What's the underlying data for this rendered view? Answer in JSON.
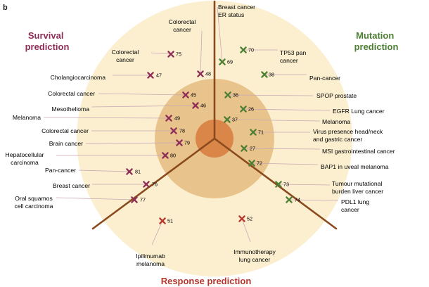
{
  "panel_label": "b",
  "colors": {
    "outer_circle": "#fbefcf",
    "middle_circle": "#e9c38c",
    "inner_circle": "#d98648",
    "divider": "#8a4a1e",
    "survival": "#8e2e57",
    "mutation": "#4d7f32",
    "response": "#b5362c",
    "leader": "#c7a9b4"
  },
  "titles": {
    "survival": [
      "Survival",
      "prediction"
    ],
    "mutation": [
      "Mutation",
      "prediction"
    ],
    "response": "Response prediction"
  },
  "items": [
    {
      "category": "survival",
      "ref": "75",
      "label": [
        "Colorectal",
        "cancer"
      ]
    },
    {
      "category": "survival",
      "ref": "48",
      "label": [
        "Colorectal",
        "cancer"
      ]
    },
    {
      "category": "survival",
      "ref": "47",
      "label": [
        "Cholangiocarcinoma"
      ]
    },
    {
      "category": "survival",
      "ref": "45",
      "label": [
        "Colorectal cancer"
      ]
    },
    {
      "category": "survival",
      "ref": "46",
      "label": [
        "Mesothelioma"
      ]
    },
    {
      "category": "survival",
      "ref": "49",
      "label": [
        "Melanoma"
      ]
    },
    {
      "category": "survival",
      "ref": "78",
      "label": [
        "Colorectal cancer"
      ]
    },
    {
      "category": "survival",
      "ref": "79",
      "label": [
        "Brain cancer"
      ]
    },
    {
      "category": "survival",
      "ref": "80",
      "label": [
        "Hepatocellular",
        "carcinoma"
      ]
    },
    {
      "category": "survival",
      "ref": "81",
      "label": [
        "Pan-cancer"
      ]
    },
    {
      "category": "survival",
      "ref": "76",
      "label": [
        "Breast cancer"
      ]
    },
    {
      "category": "survival",
      "ref": "77",
      "label": [
        "Oral squamos",
        "cell carcinoma"
      ]
    },
    {
      "category": "mutation",
      "ref": "69",
      "label": [
        "Breast cancer",
        "ER status"
      ]
    },
    {
      "category": "mutation",
      "ref": "70",
      "label": [
        "TP53 pan",
        "cancer"
      ]
    },
    {
      "category": "mutation",
      "ref": "38",
      "label": [
        "Pan-cancer"
      ]
    },
    {
      "category": "mutation",
      "ref": "36",
      "label": [
        "SPOP prostate"
      ]
    },
    {
      "category": "mutation",
      "ref": "26",
      "label": [
        "EGFR Lung cancer"
      ]
    },
    {
      "category": "mutation",
      "ref": "37",
      "label": [
        "Melanoma"
      ]
    },
    {
      "category": "mutation",
      "ref": "71",
      "label": [
        "Virus presence head/neck",
        "and gastric cancer"
      ]
    },
    {
      "category": "mutation",
      "ref": "27",
      "label": [
        "MSI gastrointestinal cancer"
      ]
    },
    {
      "category": "mutation",
      "ref": "72",
      "label": [
        "BAP1 in uveal melanoma"
      ]
    },
    {
      "category": "mutation",
      "ref": "73",
      "label": [
        "Tumour mutational",
        "burden liver cancer"
      ]
    },
    {
      "category": "mutation",
      "ref": "74",
      "label": [
        "PDL1 lung",
        "cancer"
      ]
    },
    {
      "category": "response",
      "ref": "51",
      "label": [
        "Ipilimumab",
        "melanoma"
      ]
    },
    {
      "category": "response",
      "ref": "52",
      "label": [
        "Immunotherapy",
        "lung cancer"
      ]
    }
  ]
}
